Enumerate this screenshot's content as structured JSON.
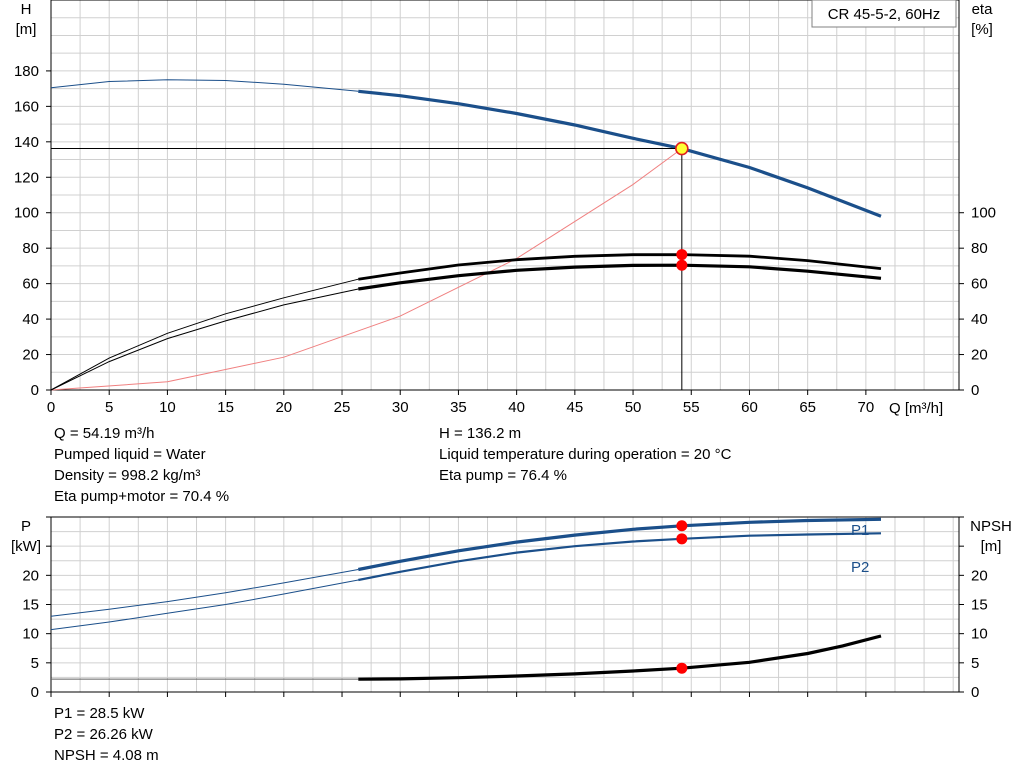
{
  "chart_data": {
    "type": "line",
    "title": "CR 45-5-2, 60Hz",
    "x_axis": {
      "label": "Q [m³/h]",
      "range": [
        0,
        78
      ],
      "ticks": [
        0,
        5,
        10,
        15,
        20,
        25,
        30,
        35,
        40,
        45,
        50,
        55,
        60,
        65,
        70
      ]
    },
    "top_panel": {
      "left_axis": {
        "label_line1": "H",
        "label_line2": "[m]",
        "range": [
          0,
          220
        ],
        "ticks": [
          0,
          20,
          40,
          60,
          80,
          100,
          120,
          140,
          160,
          180
        ]
      },
      "right_axis": {
        "label_line1": "eta",
        "label_line2": "[%]",
        "range": [
          0,
          220
        ],
        "ticks": [
          0,
          20,
          40,
          60,
          80,
          100
        ]
      },
      "series": [
        {
          "key": "head",
          "color": "#1b4f8a",
          "x": [
            0,
            5,
            10,
            15,
            20,
            26.4,
            30,
            35,
            40,
            45,
            50,
            54.19,
            60,
            65,
            71.3
          ],
          "y": [
            170.5,
            174,
            175,
            174.6,
            172.5,
            168.5,
            166,
            161.5,
            156,
            149.5,
            142,
            136.2,
            125.5,
            114,
            98
          ]
        },
        {
          "key": "eta-pump",
          "color": "#000000",
          "x": [
            0,
            5,
            10,
            15,
            20,
            26.4,
            30,
            35,
            40,
            45,
            50,
            54.19,
            60,
            65,
            71.3
          ],
          "y": [
            0,
            18,
            32,
            43,
            52,
            62.5,
            66,
            70.5,
            73.5,
            75.4,
            76.3,
            76.4,
            75.5,
            73,
            68.5
          ]
        },
        {
          "key": "eta-pump-motor",
          "color": "#000000",
          "x": [
            0,
            5,
            10,
            15,
            20,
            26.4,
            30,
            35,
            40,
            45,
            50,
            54.19,
            60,
            65,
            71.3
          ],
          "y": [
            0,
            16,
            29,
            39,
            48,
            57,
            60.5,
            64.5,
            67.5,
            69.3,
            70.3,
            70.4,
            69.5,
            67,
            63
          ]
        },
        {
          "key": "system",
          "color": "#f08080",
          "x": [
            0,
            10,
            20,
            30,
            40,
            50,
            54.19
          ],
          "y": [
            0,
            4.6,
            18.5,
            41.7,
            74.2,
            116,
            136.2
          ]
        }
      ]
    },
    "bottom_panel": {
      "left_axis": {
        "label_line1": "P",
        "label_line2": "[kW]",
        "range": [
          0,
          30
        ],
        "ticks": [
          0,
          5,
          10,
          15,
          20
        ]
      },
      "right_axis": {
        "label_line1": "NPSH",
        "label_line2": "[m]",
        "range": [
          0,
          30
        ],
        "ticks": [
          0,
          5,
          10,
          15,
          20
        ]
      },
      "series": [
        {
          "key": "p1",
          "name": "P1",
          "color": "#1b4f8a",
          "x": [
            0,
            5,
            10,
            15,
            20,
            26.4,
            30,
            35,
            40,
            45,
            50,
            54.19,
            60,
            65,
            71.3
          ],
          "y": [
            13,
            14.2,
            15.5,
            17,
            18.7,
            21,
            22.4,
            24.2,
            25.7,
            26.9,
            27.9,
            28.5,
            29.1,
            29.4,
            29.6
          ]
        },
        {
          "key": "p2",
          "name": "P2",
          "color": "#1b4f8a",
          "x": [
            0,
            5,
            10,
            15,
            20,
            26.4,
            30,
            35,
            40,
            45,
            50,
            54.19,
            60,
            65,
            71.3
          ],
          "y": [
            10.7,
            12,
            13.5,
            15,
            16.8,
            19.2,
            20.6,
            22.4,
            23.9,
            25,
            25.8,
            26.26,
            26.8,
            27,
            27.2
          ]
        },
        {
          "key": "npsh",
          "color": "#000000",
          "x": [
            26.4,
            30,
            35,
            40,
            45,
            50,
            54.19,
            60,
            65,
            68,
            71.3
          ],
          "y": [
            2.2,
            2.25,
            2.45,
            2.75,
            3.1,
            3.6,
            4.08,
            5.1,
            6.6,
            7.9,
            9.6
          ]
        }
      ]
    },
    "operating_point": {
      "q": 54.19,
      "h": 136.2,
      "eta_pump": 76.4,
      "eta_pump_motor": 70.4,
      "p1": 28.5,
      "p2": 26.26,
      "npsh": 4.08
    }
  },
  "info_top_left": [
    "Q = 54.19 m³/h",
    "Pumped liquid = Water",
    "Density = 998.2 kg/m³",
    "Eta pump+motor = 70.4 %"
  ],
  "info_top_right": [
    "H = 136.2 m",
    "Liquid temperature during operation = 20 °C",
    "Eta pump = 76.4 %"
  ],
  "info_bottom": [
    "P1 = 28.5 kW",
    "P2 = 26.26 kW",
    "NPSH = 4.08 m"
  ]
}
